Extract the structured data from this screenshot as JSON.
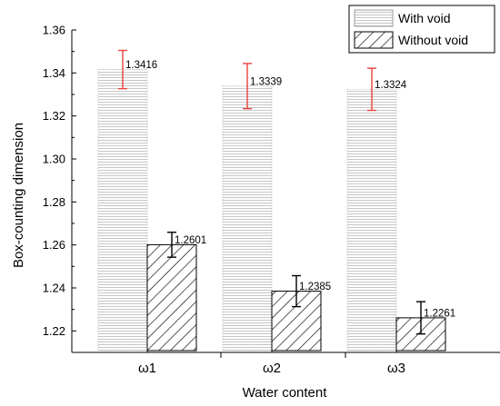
{
  "chart_data": {
    "type": "bar",
    "xlabel": "Water content",
    "ylabel": "Box-counting dimension",
    "categories": [
      "ω1",
      "ω2",
      "ω3"
    ],
    "ylim": [
      1.21,
      1.36
    ],
    "yticks": [
      1.22,
      1.24,
      1.26,
      1.28,
      1.3,
      1.32,
      1.34,
      1.36
    ],
    "ytick_labels": [
      "1.22",
      "1.24",
      "1.26",
      "1.28",
      "1.30",
      "1.32",
      "1.34",
      "1.36"
    ],
    "grid": false,
    "legend_position": "top-right",
    "series": [
      {
        "name": "With void",
        "pattern": "horizontal-lines",
        "error_color": "#e8413c",
        "values": [
          1.3416,
          1.3339,
          1.3324
        ],
        "value_labels": [
          "1.3416",
          "1.3339",
          "1.3324"
        ],
        "errors": [
          0.0089,
          0.0105,
          0.0098
        ]
      },
      {
        "name": "Without void",
        "pattern": "diagonal-hatch",
        "error_color": "#000000",
        "values": [
          1.2601,
          1.2385,
          1.2261
        ],
        "value_labels": [
          "1.2601",
          "1.2385",
          "1.2261"
        ],
        "errors": [
          0.0058,
          0.0072,
          0.0075
        ]
      }
    ]
  }
}
